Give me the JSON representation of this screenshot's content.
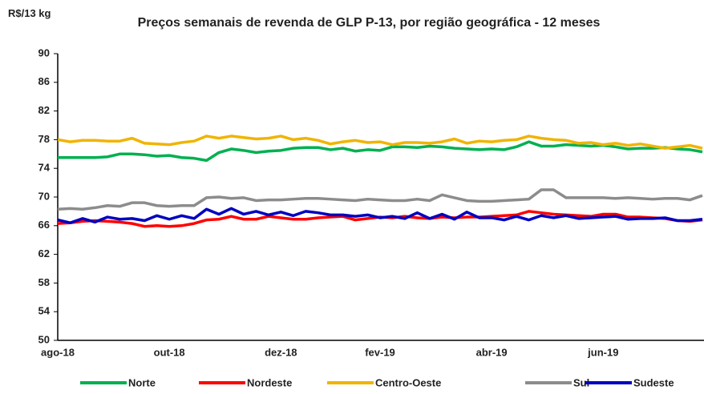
{
  "chart_data": {
    "type": "line",
    "title": "Preços semanais de revenda de GLP P-13, por região geográfica - 12 meses",
    "y_label": "R$/13 kg",
    "categories": [
      "ago-18",
      null,
      null,
      null,
      null,
      null,
      null,
      null,
      null,
      "out-18",
      null,
      null,
      null,
      null,
      null,
      null,
      null,
      null,
      "dez-18",
      null,
      null,
      null,
      null,
      null,
      null,
      null,
      "fev-19",
      null,
      null,
      null,
      null,
      null,
      null,
      null,
      null,
      "abr-19",
      null,
      null,
      null,
      null,
      null,
      null,
      null,
      null,
      "jun-19",
      null,
      null,
      null,
      null,
      null,
      null,
      null,
      null
    ],
    "ylim": [
      50,
      90
    ],
    "yticks": [
      50,
      54,
      58,
      62,
      66,
      70,
      74,
      78,
      82,
      86,
      90
    ],
    "grid": false,
    "legend": "bottom",
    "series": [
      {
        "name": "Norte",
        "color": "#00b050",
        "values": [
          75.5,
          75.5,
          75.5,
          75.5,
          75.6,
          76,
          76,
          75.9,
          75.7,
          75.8,
          75.5,
          75.4,
          75.1,
          76.2,
          76.7,
          76.5,
          76.2,
          76.4,
          76.5,
          76.8,
          76.9,
          76.9,
          76.6,
          76.8,
          76.4,
          76.6,
          76.5,
          77,
          77,
          76.9,
          77.1,
          77,
          76.8,
          76.7,
          76.6,
          76.7,
          76.6,
          77,
          77.7,
          77.1,
          77.1,
          77.3,
          77.2,
          77.1,
          77.2,
          77,
          76.7,
          76.8,
          76.8,
          76.9,
          76.7,
          76.6,
          76.3
        ]
      },
      {
        "name": "Nordeste",
        "color": "#ff0000",
        "values": [
          66.3,
          66.4,
          66.6,
          66.7,
          66.6,
          66.5,
          66.3,
          65.9,
          66,
          65.9,
          66,
          66.3,
          66.8,
          66.9,
          67.3,
          66.9,
          66.9,
          67.3,
          67.1,
          66.9,
          66.9,
          67.1,
          67.2,
          67.3,
          66.8,
          67,
          67.2,
          67.1,
          67.3,
          67.1,
          67,
          67.2,
          67.1,
          67.2,
          67.2,
          67.3,
          67.4,
          67.5,
          68,
          67.8,
          67.6,
          67.5,
          67.4,
          67.3,
          67.6,
          67.6,
          67.2,
          67.2,
          67.1,
          67,
          66.7,
          66.6,
          66.8
        ]
      },
      {
        "name": "Centro-Oeste",
        "color": "#f0b400",
        "values": [
          78,
          77.7,
          77.9,
          77.9,
          77.8,
          77.8,
          78.2,
          77.5,
          77.4,
          77.3,
          77.6,
          77.8,
          78.5,
          78.2,
          78.5,
          78.3,
          78.1,
          78.2,
          78.5,
          78,
          78.2,
          77.9,
          77.4,
          77.7,
          77.9,
          77.6,
          77.7,
          77.3,
          77.6,
          77.6,
          77.5,
          77.7,
          78.1,
          77.5,
          77.8,
          77.7,
          77.9,
          78,
          78.5,
          78.2,
          78,
          77.9,
          77.5,
          77.6,
          77.3,
          77.5,
          77.2,
          77.4,
          77.1,
          76.8,
          77,
          77.2,
          76.8
        ]
      },
      {
        "name": "Sul",
        "color": "#8c8c8c",
        "values": [
          68.3,
          68.4,
          68.3,
          68.5,
          68.8,
          68.7,
          69.2,
          69.2,
          68.8,
          68.7,
          68.8,
          68.8,
          69.9,
          70,
          69.8,
          69.9,
          69.5,
          69.6,
          69.6,
          69.7,
          69.8,
          69.8,
          69.7,
          69.6,
          69.5,
          69.7,
          69.6,
          69.5,
          69.5,
          69.7,
          69.5,
          70.3,
          69.9,
          69.5,
          69.4,
          69.4,
          69.5,
          69.6,
          69.7,
          71,
          71,
          69.9,
          69.9,
          69.9,
          69.9,
          69.8,
          69.9,
          69.8,
          69.7,
          69.8,
          69.8,
          69.6,
          70.2
        ]
      },
      {
        "name": "Sudeste",
        "color": "#0000c0",
        "values": [
          66.8,
          66.4,
          67,
          66.5,
          67.2,
          66.9,
          67,
          66.7,
          67.4,
          66.9,
          67.4,
          67,
          68.3,
          67.6,
          68.4,
          67.6,
          68,
          67.5,
          67.9,
          67.4,
          68,
          67.8,
          67.5,
          67.5,
          67.3,
          67.5,
          67.1,
          67.3,
          67,
          67.8,
          67,
          67.6,
          66.9,
          67.9,
          67.1,
          67.1,
          66.8,
          67.3,
          66.8,
          67.4,
          67.1,
          67.4,
          67,
          67.1,
          67.2,
          67.3,
          66.9,
          67,
          67,
          67.1,
          66.7,
          66.7,
          66.9
        ]
      }
    ]
  }
}
